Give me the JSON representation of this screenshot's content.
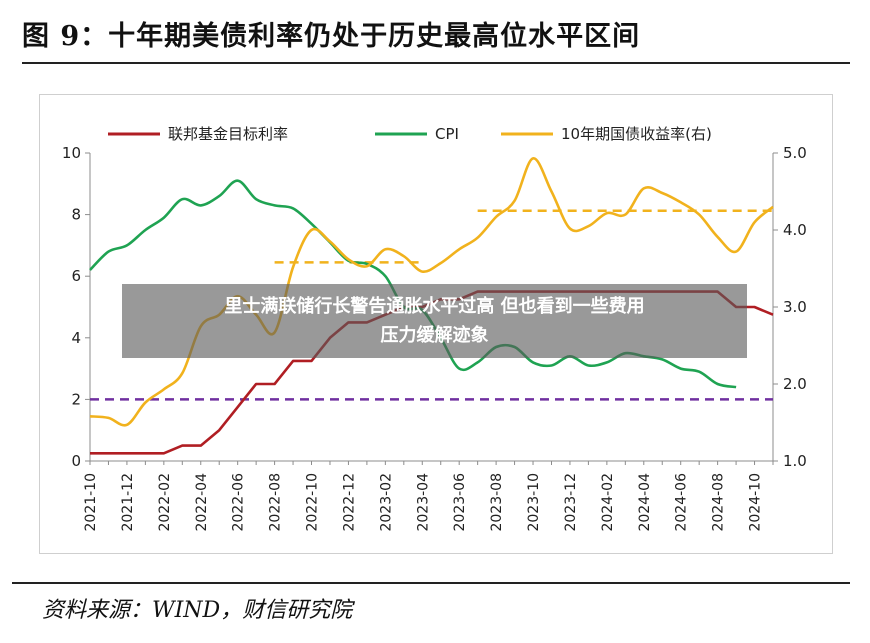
{
  "figure": {
    "title": "图 9：十年期美债利率仍处于历史最高位水平区间",
    "source": "资料来源：WIND，财信研究院"
  },
  "overlay": {
    "line1": "里士满联储行长警告通胀水平过高 但也看到一些费用",
    "line2": "压力缓解迹象"
  },
  "chart_data": {
    "type": "line",
    "legend_position": "top",
    "grid": false,
    "x": [
      "2021-10",
      "2021-11",
      "2021-12",
      "2022-01",
      "2022-02",
      "2022-03",
      "2022-04",
      "2022-05",
      "2022-06",
      "2022-07",
      "2022-08",
      "2022-09",
      "2022-10",
      "2022-11",
      "2022-12",
      "2023-01",
      "2023-02",
      "2023-03",
      "2023-04",
      "2023-05",
      "2023-06",
      "2023-07",
      "2023-08",
      "2023-09",
      "2023-10",
      "2023-11",
      "2023-12",
      "2024-01",
      "2024-02",
      "2024-03",
      "2024-04",
      "2024-05",
      "2024-06",
      "2024-07",
      "2024-08",
      "2024-09",
      "2024-10",
      "2024-11"
    ],
    "x_tick_labels": [
      "2021-10",
      "2021-12",
      "2022-02",
      "2022-04",
      "2022-06",
      "2022-08",
      "2022-10",
      "2022-12",
      "2023-02",
      "2023-04",
      "2023-06",
      "2023-08",
      "2023-10",
      "2023-12",
      "2024-02",
      "2024-04",
      "2024-06",
      "2024-08",
      "2024-10"
    ],
    "y_left": {
      "ticks": [
        "0",
        "2",
        "4",
        "6",
        "8",
        "10"
      ],
      "ylim": [
        0,
        10
      ]
    },
    "y_right": {
      "ticks": [
        "1.0",
        "2.0",
        "3.0",
        "4.0",
        "5.0"
      ],
      "ylim": [
        1.0,
        5.0
      ]
    },
    "series": [
      {
        "name": "联邦基金目标利率",
        "axis": "left",
        "color": "#b01e23",
        "values": [
          0.25,
          0.25,
          0.25,
          0.25,
          0.25,
          0.5,
          0.5,
          1.0,
          1.75,
          2.5,
          2.5,
          3.25,
          3.25,
          4.0,
          4.5,
          4.5,
          4.75,
          5.0,
          5.0,
          5.25,
          5.25,
          5.5,
          5.5,
          5.5,
          5.5,
          5.5,
          5.5,
          5.5,
          5.5,
          5.5,
          5.5,
          5.5,
          5.5,
          5.5,
          5.5,
          5.0,
          5.0,
          4.75
        ]
      },
      {
        "name": "CPI",
        "axis": "left",
        "color": "#1fa352",
        "values": [
          6.2,
          6.8,
          7.0,
          7.5,
          7.9,
          8.5,
          8.3,
          8.6,
          9.1,
          8.5,
          8.3,
          8.2,
          7.7,
          7.1,
          6.5,
          6.4,
          6.0,
          5.0,
          4.9,
          4.0,
          3.0,
          3.2,
          3.7,
          3.7,
          3.2,
          3.1,
          3.4,
          3.1,
          3.2,
          3.5,
          3.4,
          3.3,
          3.0,
          2.9,
          2.5,
          2.4,
          null,
          null
        ]
      },
      {
        "name": "10年期国债收益率(右)",
        "axis": "right",
        "color": "#f1b21d",
        "values": [
          1.58,
          1.56,
          1.47,
          1.76,
          1.93,
          2.14,
          2.75,
          2.9,
          3.14,
          2.9,
          2.67,
          3.52,
          4.0,
          3.85,
          3.62,
          3.53,
          3.75,
          3.66,
          3.46,
          3.57,
          3.75,
          3.9,
          4.17,
          4.38,
          4.93,
          4.5,
          4.02,
          4.05,
          4.22,
          4.2,
          4.54,
          4.48,
          4.36,
          4.2,
          3.91,
          3.72,
          4.1,
          4.3
        ]
      }
    ],
    "reference_lines": [
      {
        "axis": "left",
        "value": 2.0,
        "color": "#7030a0",
        "from": "2021-10",
        "to": "2024-11"
      },
      {
        "axis": "right",
        "value": 3.58,
        "color": "#f1b21d",
        "from": "2022-08",
        "to": "2023-04"
      },
      {
        "axis": "right",
        "value": 4.25,
        "color": "#f1b21d",
        "from": "2023-07",
        "to": "2024-11"
      }
    ]
  }
}
